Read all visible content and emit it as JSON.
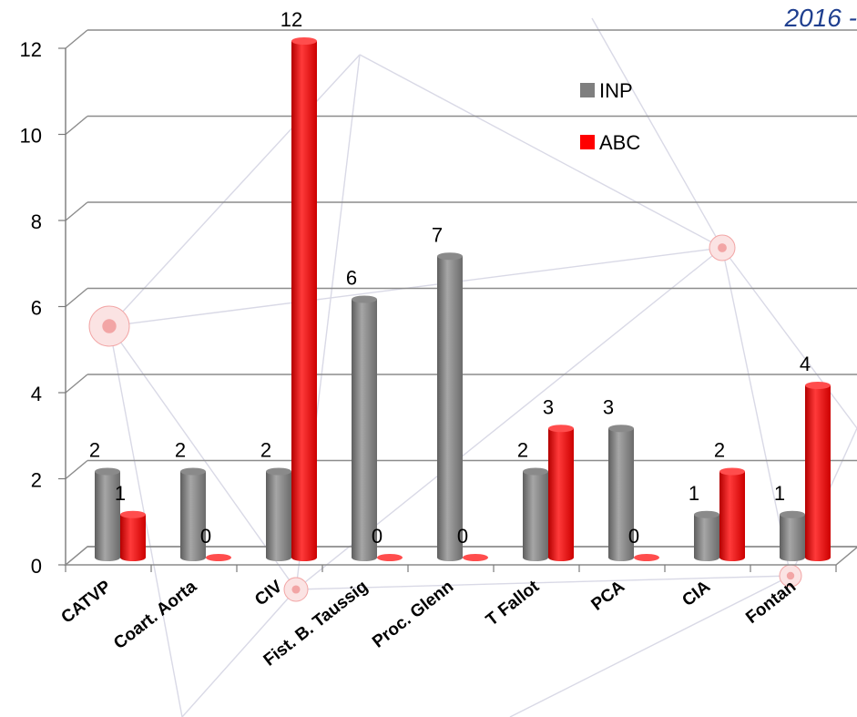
{
  "header": {
    "corner_title": "2016 -"
  },
  "colors": {
    "inp": "#7f7f7f",
    "abc": "#ff0000",
    "gridline": "#8c8c8c",
    "decor": "#f2a5a5"
  },
  "chart_data": {
    "type": "bar",
    "title": "",
    "xlabel": "",
    "ylabel": "",
    "categories": [
      "CATVP",
      "Coart. Aorta",
      "CIV",
      "Fist. B. Taussig",
      "Proc. Glenn",
      "T Fallot",
      "PCA",
      "CIA",
      "Fontan"
    ],
    "series": [
      {
        "name": "INP",
        "color": "#7f7f7f",
        "values": [
          2,
          2,
          2,
          6,
          7,
          2,
          3,
          1,
          1
        ]
      },
      {
        "name": "ABC",
        "color": "#ff0000",
        "values": [
          1,
          0,
          12,
          0,
          0,
          3,
          0,
          2,
          4
        ]
      }
    ],
    "ylim": [
      0,
      12
    ],
    "yticks": [
      "0",
      "2",
      "4",
      "6",
      "8",
      "10",
      "12"
    ],
    "grid": true,
    "legend_position": "top-right",
    "data_labels": true,
    "style": "3d-cylinder"
  }
}
